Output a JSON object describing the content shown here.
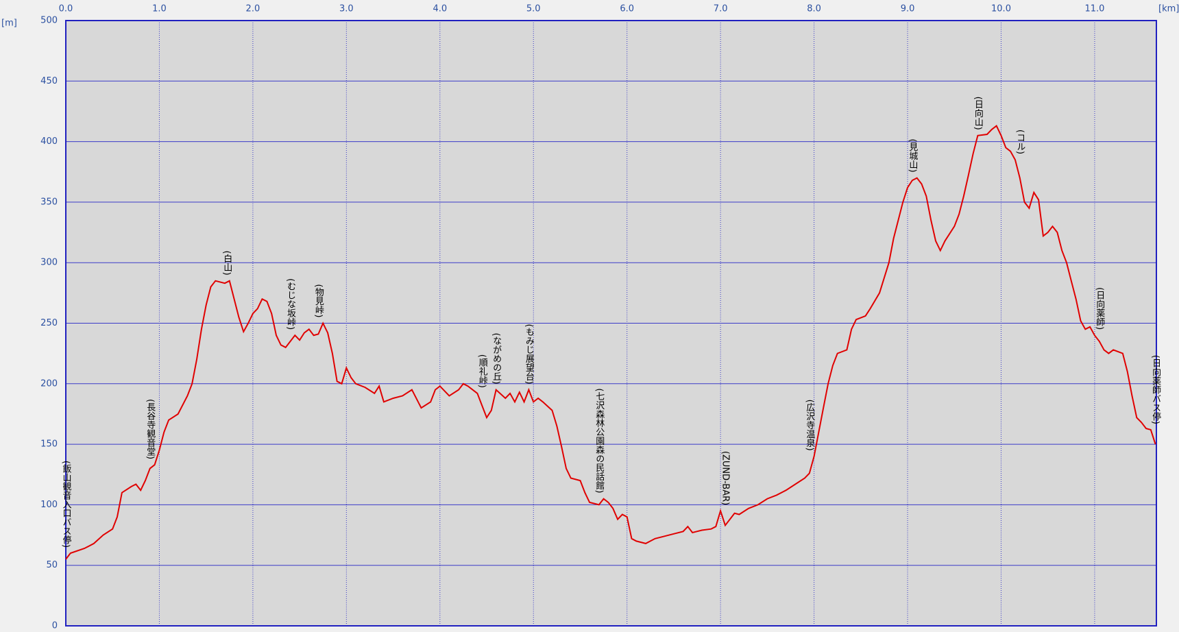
{
  "chart_data": {
    "type": "line",
    "x_label": "[km]",
    "y_label": "[m]",
    "xlim": [
      0,
      11.66
    ],
    "ylim": [
      0,
      500
    ],
    "xticks": [
      {
        "value": 0,
        "label": "0.0"
      },
      {
        "value": 1,
        "label": "1.0"
      },
      {
        "value": 2,
        "label": "2.0"
      },
      {
        "value": 3,
        "label": "3.0"
      },
      {
        "value": 4,
        "label": "4.0"
      },
      {
        "value": 5,
        "label": "5.0"
      },
      {
        "value": 6,
        "label": "6.0"
      },
      {
        "value": 7,
        "label": "7.0"
      },
      {
        "value": 8,
        "label": "8.0"
      },
      {
        "value": 9,
        "label": "9.0"
      },
      {
        "value": 10,
        "label": "10.0"
      },
      {
        "value": 11,
        "label": "11.0"
      }
    ],
    "yticks": [
      0,
      50,
      100,
      150,
      200,
      250,
      300,
      350,
      400,
      450,
      500
    ],
    "grid": true,
    "color": "#e00000",
    "x": [
      0,
      0.05,
      0.2,
      0.3,
      0.4,
      0.5,
      0.55,
      0.6,
      0.7,
      0.75,
      0.8,
      0.85,
      0.9,
      0.95,
      1.0,
      1.05,
      1.1,
      1.2,
      1.3,
      1.35,
      1.4,
      1.45,
      1.5,
      1.55,
      1.6,
      1.7,
      1.75,
      1.8,
      1.85,
      1.9,
      1.95,
      2.0,
      2.05,
      2.1,
      2.15,
      2.2,
      2.25,
      2.3,
      2.35,
      2.4,
      2.45,
      2.5,
      2.55,
      2.6,
      2.65,
      2.7,
      2.75,
      2.8,
      2.85,
      2.9,
      2.95,
      3.0,
      3.05,
      3.1,
      3.2,
      3.3,
      3.35,
      3.4,
      3.5,
      3.6,
      3.7,
      3.8,
      3.9,
      3.95,
      4.0,
      4.1,
      4.2,
      4.25,
      4.3,
      4.4,
      4.45,
      4.5,
      4.55,
      4.6,
      4.7,
      4.75,
      4.8,
      4.85,
      4.9,
      4.95,
      5.0,
      5.05,
      5.1,
      5.2,
      5.25,
      5.3,
      5.35,
      5.4,
      5.5,
      5.55,
      5.6,
      5.7,
      5.75,
      5.8,
      5.85,
      5.9,
      5.95,
      6.0,
      6.05,
      6.1,
      6.2,
      6.3,
      6.4,
      6.5,
      6.6,
      6.65,
      6.7,
      6.8,
      6.9,
      6.95,
      7.0,
      7.05,
      7.1,
      7.15,
      7.2,
      7.3,
      7.4,
      7.5,
      7.6,
      7.7,
      7.8,
      7.9,
      7.95,
      8.0,
      8.05,
      8.1,
      8.15,
      8.2,
      8.25,
      8.35,
      8.4,
      8.45,
      8.55,
      8.6,
      8.7,
      8.8,
      8.85,
      8.9,
      8.95,
      9.0,
      9.05,
      9.1,
      9.15,
      9.2,
      9.25,
      9.3,
      9.35,
      9.4,
      9.5,
      9.55,
      9.6,
      9.65,
      9.7,
      9.75,
      9.85,
      9.9,
      9.95,
      10.0,
      10.05,
      10.1,
      10.15,
      10.2,
      10.25,
      10.3,
      10.35,
      10.4,
      10.45,
      10.5,
      10.55,
      10.6,
      10.65,
      10.7,
      10.75,
      10.8,
      10.85,
      10.9,
      10.95,
      11.0,
      11.05,
      11.1,
      11.15,
      11.2,
      11.3,
      11.35,
      11.4,
      11.45,
      11.5,
      11.55,
      11.6,
      11.65
    ],
    "values": [
      55,
      60,
      64,
      68,
      75,
      80,
      90,
      110,
      115,
      117,
      112,
      120,
      130,
      133,
      145,
      160,
      170,
      175,
      190,
      200,
      220,
      245,
      265,
      280,
      285,
      283,
      285,
      270,
      255,
      243,
      250,
      258,
      262,
      270,
      268,
      258,
      240,
      232,
      230,
      235,
      240,
      236,
      242,
      245,
      240,
      241,
      250,
      242,
      225,
      202,
      200,
      213,
      205,
      200,
      197,
      192,
      198,
      185,
      188,
      190,
      195,
      180,
      185,
      195,
      198,
      190,
      195,
      200,
      198,
      192,
      182,
      172,
      178,
      195,
      188,
      192,
      185,
      193,
      185,
      195,
      185,
      188,
      185,
      178,
      165,
      148,
      130,
      122,
      120,
      110,
      102,
      100,
      105,
      102,
      97,
      88,
      92,
      90,
      72,
      70,
      68,
      72,
      74,
      76,
      78,
      82,
      77,
      79,
      80,
      82,
      95,
      83,
      88,
      93,
      92,
      97,
      100,
      105,
      108,
      112,
      117,
      122,
      126,
      140,
      160,
      180,
      200,
      215,
      225,
      228,
      245,
      253,
      256,
      262,
      275,
      300,
      320,
      335,
      350,
      362,
      368,
      370,
      365,
      355,
      335,
      318,
      310,
      318,
      330,
      340,
      355,
      372,
      390,
      405,
      406,
      410,
      413,
      405,
      395,
      392,
      385,
      370,
      350,
      345,
      358,
      352,
      322,
      325,
      330,
      325,
      310,
      300,
      285,
      270,
      252,
      245,
      247,
      240,
      235,
      228,
      225,
      228,
      225,
      210,
      190,
      172,
      168,
      163,
      162,
      150
    ],
    "annotations": [
      {
        "text": "(飯山観音入口バス停)",
        "x": 0
      },
      {
        "text": "(長谷寺観音堂)",
        "x": 0.9
      },
      {
        "text": "(白山)",
        "x": 1.72
      },
      {
        "text": "(むじな坂峠)",
        "x": 2.4
      },
      {
        "text": "(物見峠)",
        "x": 2.7
      },
      {
        "text": "(順礼峠)",
        "x": 4.45
      },
      {
        "text": "(ながめの丘)",
        "x": 4.6
      },
      {
        "text": "(もみじ展望台)",
        "x": 4.95
      },
      {
        "text": "(七沢森林公園森の民話館)",
        "x": 5.7
      },
      {
        "text": "(ZUND-BAR)",
        "x": 7.05
      },
      {
        "text": "(広沢寺温泉)",
        "x": 7.95
      },
      {
        "text": "(見城山)",
        "x": 9.05
      },
      {
        "text": "(日向山)",
        "x": 9.75
      },
      {
        "text": "(コル)",
        "x": 10.2
      },
      {
        "text": "(日向薬師)",
        "x": 11.05
      },
      {
        "text": "(日向薬師バス停)",
        "x": 11.65
      }
    ]
  }
}
